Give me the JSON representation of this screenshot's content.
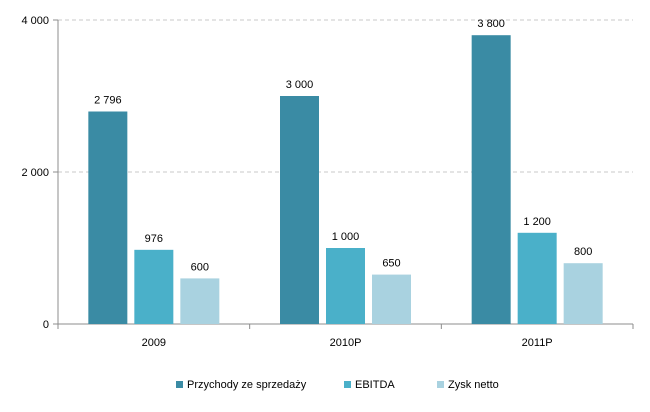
{
  "chart_data": {
    "type": "bar",
    "categories": [
      "2009",
      "2010P",
      "2011P"
    ],
    "series": [
      {
        "name": "Przychody ze sprzedaży",
        "values": [
          2796,
          3000,
          3800
        ],
        "labels": [
          "2 796",
          "3 000",
          "3 800"
        ],
        "color": "#3a8ba4"
      },
      {
        "name": "EBITDA",
        "values": [
          976,
          1000,
          1200
        ],
        "labels": [
          "976",
          "1 000",
          "1 200"
        ],
        "color": "#4ab0c9"
      },
      {
        "name": "Zysk netto",
        "values": [
          600,
          650,
          800
        ],
        "labels": [
          "600",
          "650",
          "800"
        ],
        "color": "#a9d2e0"
      }
    ],
    "yticks": [
      0,
      2000,
      4000
    ],
    "ytick_labels": [
      "0",
      "2 000",
      "4 000"
    ],
    "ylim": [
      0,
      4000
    ],
    "grid": true,
    "legend": "bottom",
    "title": "",
    "xlabel": "",
    "ylabel": ""
  }
}
